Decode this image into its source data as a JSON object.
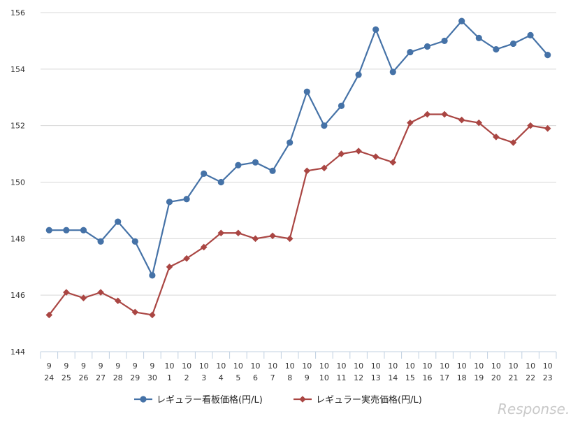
{
  "chart_data": {
    "type": "line",
    "categories": [
      {
        "m": "9",
        "d": "24"
      },
      {
        "m": "9",
        "d": "25"
      },
      {
        "m": "9",
        "d": "26"
      },
      {
        "m": "9",
        "d": "27"
      },
      {
        "m": "9",
        "d": "28"
      },
      {
        "m": "9",
        "d": "29"
      },
      {
        "m": "9",
        "d": "30"
      },
      {
        "m": "10",
        "d": "1"
      },
      {
        "m": "10",
        "d": "2"
      },
      {
        "m": "10",
        "d": "3"
      },
      {
        "m": "10",
        "d": "4"
      },
      {
        "m": "10",
        "d": "5"
      },
      {
        "m": "10",
        "d": "6"
      },
      {
        "m": "10",
        "d": "7"
      },
      {
        "m": "10",
        "d": "8"
      },
      {
        "m": "10",
        "d": "9"
      },
      {
        "m": "10",
        "d": "10"
      },
      {
        "m": "10",
        "d": "11"
      },
      {
        "m": "10",
        "d": "12"
      },
      {
        "m": "10",
        "d": "13"
      },
      {
        "m": "10",
        "d": "14"
      },
      {
        "m": "10",
        "d": "15"
      },
      {
        "m": "10",
        "d": "16"
      },
      {
        "m": "10",
        "d": "17"
      },
      {
        "m": "10",
        "d": "18"
      },
      {
        "m": "10",
        "d": "19"
      },
      {
        "m": "10",
        "d": "20"
      },
      {
        "m": "10",
        "d": "21"
      },
      {
        "m": "10",
        "d": "22"
      },
      {
        "m": "10",
        "d": "23"
      }
    ],
    "series": [
      {
        "name": "レギュラー看板価格(円/L)",
        "color": "#4572a7",
        "marker": "circle",
        "values": [
          148.3,
          148.3,
          148.3,
          147.9,
          148.6,
          147.9,
          146.7,
          149.3,
          149.4,
          150.3,
          150.0,
          150.6,
          150.7,
          150.4,
          151.4,
          153.2,
          152.0,
          152.7,
          153.8,
          155.4,
          153.9,
          154.6,
          154.8,
          155.0,
          155.7,
          155.1,
          154.7,
          154.9,
          155.2,
          154.5
        ]
      },
      {
        "name": "レギュラー実売価格(円/L)",
        "color": "#aa4643",
        "marker": "diamond",
        "values": [
          145.3,
          146.1,
          145.9,
          146.1,
          145.8,
          145.4,
          145.3,
          147.0,
          147.3,
          147.7,
          148.2,
          148.2,
          148.0,
          148.1,
          148.0,
          150.4,
          150.5,
          151.0,
          151.1,
          150.9,
          150.7,
          152.1,
          152.4,
          152.4,
          152.2,
          152.1,
          151.6,
          151.4,
          152.0,
          151.9
        ]
      }
    ],
    "ylim": [
      144,
      156
    ],
    "yticks": [
      144,
      146,
      148,
      150,
      152,
      154,
      156
    ],
    "grid": true,
    "legend_position": "bottom-center",
    "watermark": "Response."
  }
}
